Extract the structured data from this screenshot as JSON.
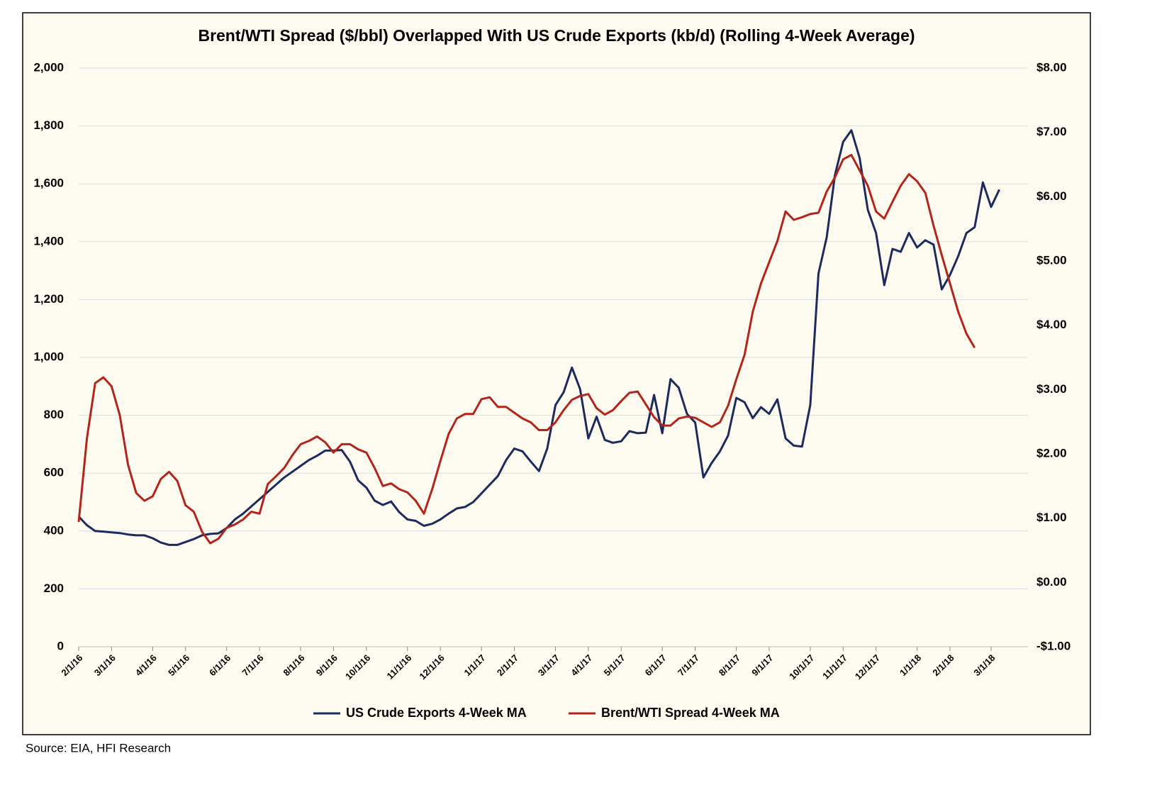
{
  "chart_data": {
    "type": "line",
    "title": "Brent/WTI Spread ($/bbl) Overlapped With US Crude Exports (kb/d) (Rolling 4-Week Average)",
    "source": "Source: EIA, HFI Research",
    "categories": [
      "2/1/16",
      null,
      null,
      null,
      "3/1/16",
      null,
      null,
      null,
      null,
      "4/1/16",
      null,
      null,
      null,
      "5/1/16",
      null,
      null,
      null,
      null,
      "6/1/16",
      null,
      null,
      null,
      "7/1/16",
      null,
      null,
      null,
      null,
      "8/1/16",
      null,
      null,
      null,
      "9/1/16",
      null,
      null,
      null,
      "10/1/16",
      null,
      null,
      null,
      null,
      "11/1/16",
      null,
      null,
      null,
      "12/1/16",
      null,
      null,
      null,
      null,
      "1/1/17",
      null,
      null,
      null,
      "2/1/17",
      null,
      null,
      null,
      null,
      "3/1/17",
      null,
      null,
      null,
      "4/1/17",
      null,
      null,
      null,
      "5/1/17",
      null,
      null,
      null,
      null,
      "6/1/17",
      null,
      null,
      null,
      "7/1/17",
      null,
      null,
      null,
      null,
      "8/1/17",
      null,
      null,
      null,
      "9/1/17",
      null,
      null,
      null,
      null,
      "10/1/17",
      null,
      null,
      null,
      "11/1/17",
      null,
      null,
      null,
      "12/1/17",
      null,
      null,
      null,
      null,
      "1/1/18",
      null,
      null,
      null,
      "2/1/18",
      null,
      null,
      null,
      null,
      "3/1/18",
      null
    ],
    "series": [
      {
        "name": "US Crude Exports 4-Week MA",
        "color": "#1c2a5e",
        "values": [
          450,
          420,
          400,
          398,
          395,
          393,
          388,
          385,
          385,
          375,
          360,
          352,
          352,
          362,
          372,
          385,
          390,
          392,
          410,
          440,
          460,
          485,
          510,
          535,
          560,
          585,
          605,
          625,
          645,
          660,
          678,
          678,
          680,
          640,
          575,
          550,
          505,
          490,
          502,
          465,
          440,
          435,
          418,
          425,
          440,
          460,
          478,
          483,
          500,
          530,
          560,
          590,
          645,
          685,
          675,
          640,
          607,
          685,
          835,
          880,
          965,
          890,
          720,
          795,
          715,
          705,
          710,
          745,
          738,
          740,
          870,
          738,
          925,
          895,
          805,
          775,
          585,
          635,
          675,
          730,
          860,
          845,
          790,
          828,
          805,
          855,
          720,
          695,
          692,
          835,
          1290,
          1415,
          1630,
          1745,
          1785,
          1690,
          1510,
          1430,
          1250,
          1375,
          1365,
          1430,
          1380,
          1405,
          1390,
          1235,
          1285,
          1350,
          1430,
          1450,
          1605,
          1520,
          1580
        ]
      },
      {
        "name": "Brent/WTI Spread 4-Week MA",
        "color": "#b3241c",
        "axis": "y2",
        "values": [
          0.94,
          2.24,
          3.1,
          3.19,
          3.05,
          2.6,
          1.83,
          1.39,
          1.27,
          1.34,
          1.61,
          1.72,
          1.58,
          1.2,
          1.1,
          0.79,
          0.61,
          0.68,
          0.85,
          0.9,
          0.98,
          1.1,
          1.07,
          1.53,
          1.65,
          1.78,
          1.98,
          2.15,
          2.2,
          2.27,
          2.18,
          2.02,
          2.15,
          2.15,
          2.07,
          2.02,
          1.78,
          1.5,
          1.54,
          1.45,
          1.4,
          1.27,
          1.07,
          1.45,
          1.89,
          2.31,
          2.55,
          2.62,
          2.62,
          2.85,
          2.88,
          2.73,
          2.73,
          2.64,
          2.55,
          2.49,
          2.37,
          2.37,
          2.49,
          2.68,
          2.84,
          2.9,
          2.93,
          2.71,
          2.61,
          2.68,
          2.82,
          2.95,
          2.97,
          2.77,
          2.57,
          2.44,
          2.44,
          2.55,
          2.58,
          2.56,
          2.49,
          2.42,
          2.49,
          2.75,
          3.16,
          3.54,
          4.21,
          4.65,
          4.98,
          5.31,
          5.77,
          5.64,
          5.68,
          5.73,
          5.75,
          6.08,
          6.3,
          6.58,
          6.65,
          6.41,
          6.17,
          5.77,
          5.66,
          5.92,
          6.17,
          6.35,
          6.24,
          6.06,
          5.55,
          5.09,
          4.65,
          4.21,
          3.87,
          3.65,
          null,
          null,
          null
        ]
      }
    ],
    "ylim": [
      0,
      2000
    ],
    "yticks": [
      0,
      200,
      400,
      600,
      800,
      {
        "value": 1000,
        "label": "1,000"
      },
      {
        "value": 1200,
        "label": "1,200"
      },
      {
        "value": 1400,
        "label": "1,400"
      },
      {
        "value": 1600,
        "label": "1,600"
      },
      {
        "value": 1800,
        "label": "1,800"
      },
      {
        "value": 2000,
        "label": "2,000"
      }
    ],
    "y2lim": [
      -1,
      8
    ],
    "y2ticks": [
      {
        "value": -1,
        "label": "-$1.00"
      },
      {
        "value": 0,
        "label": "$0.00"
      },
      {
        "value": 1,
        "label": "$1.00"
      },
      {
        "value": 2,
        "label": "$2.00"
      },
      {
        "value": 3,
        "label": "$3.00"
      },
      {
        "value": 4,
        "label": "$4.00"
      },
      {
        "value": 5,
        "label": "$5.00"
      },
      {
        "value": 6,
        "label": "$6.00"
      },
      {
        "value": 7,
        "label": "$7.00"
      },
      {
        "value": 8,
        "label": "$8.00"
      }
    ],
    "grid": true,
    "legend": "bottom"
  }
}
